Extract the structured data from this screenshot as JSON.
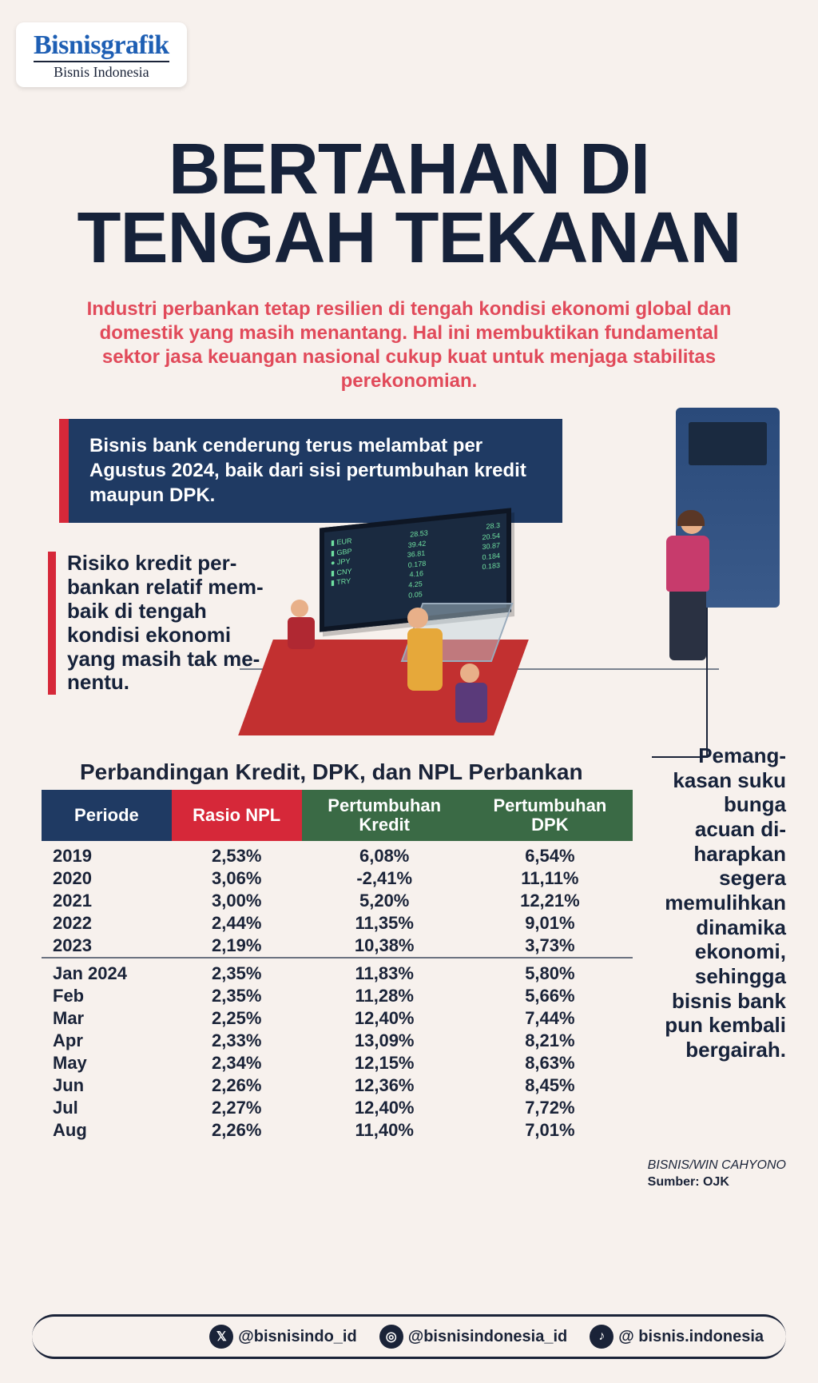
{
  "logo": {
    "main": "Bisnisgrafik",
    "sub": "Bisnis Indonesia"
  },
  "headline": "BERTAHAN DI\nTENGAH TEKANAN",
  "subhead": "Industri perbankan tetap resilien di tengah kondisi ekonomi global dan domestik yang masih menantang. Hal ini membuktikan fundamental sektor jasa keuangan nasional cukup kuat untuk menjaga stabilitas perekonomian.",
  "blue_callout": "Bisnis bank cenderung terus melambat per Agustus 2024, baik dari sisi pertumbuhan kredit maupun DPK.",
  "risk_callout": "Risiko kredit per-\nbankan relatif mem-\nbaik di tengah\nkondisi ekonomi\nyang masih tak me-\nnentu.",
  "side_callout": "Pemang-\nkasan suku\nbunga\nacuan di-\nharapkan\nsegera\nmemulihkan\ndinamika\nekonomi,\nsehingga\nbisnis bank\npun kembali\nbergairah.",
  "table": {
    "title": "Perbandingan Kredit, DPK, dan NPL Perbankan",
    "columns": [
      "Periode",
      "Rasio NPL",
      "Pertumbuhan\nKredit",
      "Pertumbuhan\nDPK"
    ],
    "header_colors": [
      "#1f3a63",
      "#d62839",
      "#3a6a45",
      "#3a6a45"
    ],
    "section1": [
      [
        "2019",
        "2,53%",
        "6,08%",
        "6,54%"
      ],
      [
        "2020",
        "3,06%",
        "-2,41%",
        "11,11%"
      ],
      [
        "2021",
        "3,00%",
        "5,20%",
        "12,21%"
      ],
      [
        "2022",
        "2,44%",
        "11,35%",
        "9,01%"
      ],
      [
        "2023",
        "2,19%",
        "10,38%",
        "3,73%"
      ]
    ],
    "section2": [
      [
        "Jan 2024",
        "2,35%",
        "11,83%",
        "5,80%"
      ],
      [
        "Feb",
        "2,35%",
        "11,28%",
        "5,66%"
      ],
      [
        "Mar",
        "2,25%",
        "12,40%",
        "7,44%"
      ],
      [
        "Apr",
        "2,33%",
        "13,09%",
        "8,21%"
      ],
      [
        "May",
        "2,34%",
        "12,15%",
        "8,63%"
      ],
      [
        "Jun",
        "2,26%",
        "12,36%",
        "8,45%"
      ],
      [
        "Jul",
        "2,27%",
        "12,40%",
        "7,72%"
      ],
      [
        "Aug",
        "2,26%",
        "11,40%",
        "7,01%"
      ]
    ]
  },
  "credit": {
    "byline": "BISNIS/WIN CAHYONO",
    "source": "Sumber: OJK"
  },
  "footer": {
    "x": "@bisnisindo_id",
    "ig": "@bisnisindonesia_id",
    "tt": "@ bisnis.indonesia"
  },
  "board_rows": [
    [
      "▮ EUR",
      "28.53",
      "28.3"
    ],
    [
      "▮ GBP",
      "39.42",
      "20.54"
    ],
    [
      "● JPY",
      "36.81",
      "30.87"
    ],
    [
      "▮ CNY",
      "0.178",
      "0.184"
    ],
    [
      "▮ TRY",
      "4.16",
      "0.183"
    ],
    [
      "",
      "4.25",
      ""
    ],
    [
      "",
      "0.05",
      ""
    ]
  ],
  "colors": {
    "page_bg": "#f7f1ed",
    "text": "#1a2338",
    "accent_red": "#d62839",
    "accent_blue": "#1f3a63",
    "accent_green": "#3a6a45",
    "sub_red": "#e14a5a"
  }
}
